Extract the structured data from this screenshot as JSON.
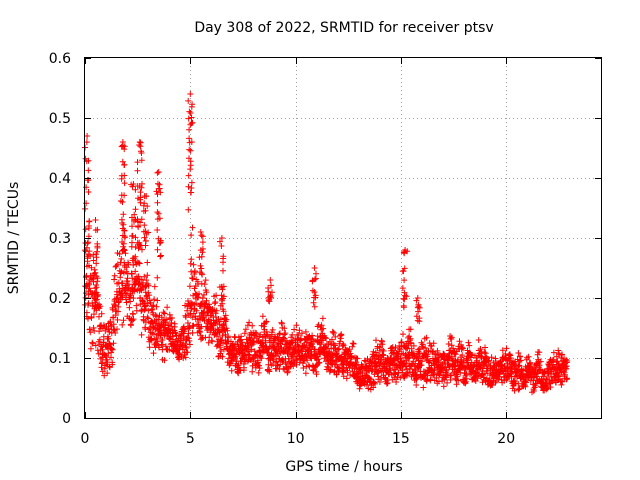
{
  "chart_data": {
    "type": "scatter",
    "title": "Day 308 of 2022, SRMTID for receiver ptsv",
    "xlabel": "GPS time / hours",
    "ylabel": "SRMTID / TECUs",
    "xlim": [
      0,
      24.5
    ],
    "ylim": [
      0,
      0.6
    ],
    "xticks": [
      0,
      5,
      10,
      15,
      20
    ],
    "yticks": [
      0,
      0.1,
      0.2,
      0.3,
      0.4,
      0.5,
      0.6
    ],
    "xtick_labels": [
      "0",
      "5",
      "10",
      "15",
      "20"
    ],
    "ytick_labels": [
      "0",
      "0.1",
      "0.2",
      "0.3",
      "0.4",
      "0.5",
      "0.6"
    ],
    "grid": true,
    "marker": "+",
    "color": "#ff0000",
    "x_range_data": [
      0.0,
      22.9
    ],
    "envelope": {
      "x": [
        0.0,
        0.3,
        0.5,
        0.8,
        1.0,
        1.3,
        1.6,
        1.8,
        2.0,
        2.3,
        2.6,
        2.9,
        3.3,
        3.7,
        4.0,
        4.5,
        5.0,
        5.2,
        5.5,
        6.0,
        6.5,
        7.0,
        7.5,
        8.0,
        8.5,
        9.0,
        9.5,
        10.0,
        10.5,
        11.0,
        11.5,
        12.0,
        12.5,
        13.0,
        13.5,
        14.0,
        14.5,
        15.0,
        15.3,
        15.6,
        16.0,
        16.5,
        17.0,
        17.5,
        18.0,
        18.5,
        19.0,
        19.5,
        20.0,
        20.5,
        21.0,
        21.5,
        22.0,
        22.5,
        22.9
      ],
      "low": [
        0.14,
        0.1,
        0.08,
        0.06,
        0.05,
        0.06,
        0.09,
        0.12,
        0.14,
        0.15,
        0.14,
        0.12,
        0.1,
        0.09,
        0.1,
        0.09,
        0.1,
        0.12,
        0.12,
        0.1,
        0.08,
        0.07,
        0.06,
        0.07,
        0.07,
        0.07,
        0.07,
        0.07,
        0.07,
        0.07,
        0.07,
        0.06,
        0.06,
        0.04,
        0.04,
        0.05,
        0.05,
        0.06,
        0.05,
        0.05,
        0.04,
        0.04,
        0.05,
        0.05,
        0.05,
        0.05,
        0.05,
        0.05,
        0.05,
        0.04,
        0.04,
        0.04,
        0.04,
        0.04,
        0.05
      ],
      "high": [
        0.3,
        0.34,
        0.28,
        0.22,
        0.2,
        0.24,
        0.3,
        0.34,
        0.3,
        0.32,
        0.32,
        0.26,
        0.22,
        0.2,
        0.18,
        0.16,
        0.3,
        0.26,
        0.24,
        0.22,
        0.2,
        0.17,
        0.16,
        0.16,
        0.18,
        0.17,
        0.16,
        0.16,
        0.16,
        0.18,
        0.16,
        0.15,
        0.14,
        0.12,
        0.12,
        0.14,
        0.13,
        0.15,
        0.16,
        0.16,
        0.14,
        0.13,
        0.14,
        0.14,
        0.13,
        0.13,
        0.13,
        0.12,
        0.12,
        0.12,
        0.11,
        0.11,
        0.11,
        0.12,
        0.11
      ]
    },
    "spikes": [
      {
        "x": 0.1,
        "y_range": [
          0.2,
          0.47
        ]
      },
      {
        "x": 0.5,
        "y_range": [
          0.18,
          0.33
        ]
      },
      {
        "x": 1.8,
        "y_range": [
          0.2,
          0.46
        ]
      },
      {
        "x": 2.3,
        "y_range": [
          0.22,
          0.39
        ]
      },
      {
        "x": 2.6,
        "y_range": [
          0.24,
          0.46
        ]
      },
      {
        "x": 2.9,
        "y_range": [
          0.25,
          0.37
        ]
      },
      {
        "x": 3.5,
        "y_range": [
          0.22,
          0.41
        ]
      },
      {
        "x": 5.0,
        "y_range": [
          0.28,
          0.54
        ]
      },
      {
        "x": 5.5,
        "y_range": [
          0.22,
          0.31
        ]
      },
      {
        "x": 6.5,
        "y_range": [
          0.18,
          0.3
        ]
      },
      {
        "x": 8.8,
        "y_range": [
          0.18,
          0.23
        ]
      },
      {
        "x": 10.9,
        "y_range": [
          0.18,
          0.25
        ]
      },
      {
        "x": 15.2,
        "y_range": [
          0.17,
          0.28
        ]
      },
      {
        "x": 15.8,
        "y_range": [
          0.16,
          0.2
        ]
      }
    ]
  }
}
